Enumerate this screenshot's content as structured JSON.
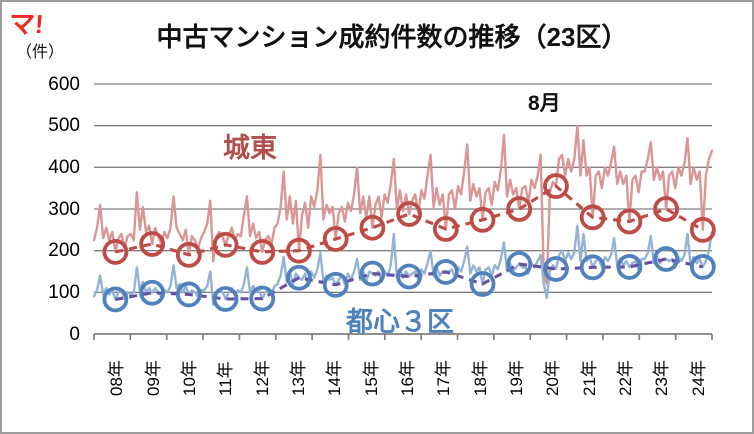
{
  "logo": {
    "text": "マ!"
  },
  "title": "中古マンション成約件数の推移（23区）",
  "annotation": {
    "august": "8月"
  },
  "axes": {
    "unit_label": "（件）"
  },
  "series_labels": {
    "johto": "城東",
    "toshin3ku": "都心３区"
  },
  "colors": {
    "johto_monthly": "#d99694",
    "toshin_monthly": "#95b3d7",
    "johto_august": "#bf4b47",
    "toshin_august_marker": "#4f81bd",
    "toshin_august_dash": "#6650a0",
    "gridline": "#7f7f7f",
    "title_text": "#111111",
    "logo_red": "#ee2a1e"
  },
  "chart_data": {
    "type": "line",
    "title": "中古マンション成約件数の推移（23区）",
    "x_unit": "month",
    "x_range": "2008-01 to 2024-11",
    "annotation": "8月",
    "grid": "horizontal",
    "legend_position": "none (inline labels)",
    "ylim": [
      0,
      600
    ],
    "yticks": [
      0,
      100,
      200,
      300,
      400,
      500,
      600
    ],
    "year_labels": [
      "08年",
      "09年",
      "10年",
      "11年",
      "12年",
      "13年",
      "14年",
      "15年",
      "16年",
      "17年",
      "18年",
      "19年",
      "20年",
      "21年",
      "22年",
      "23年",
      "24年"
    ],
    "series": [
      {
        "name": "城東 月次成約件数",
        "style": "solid",
        "color": "#d99694",
        "values": [
          225,
          255,
          310,
          230,
          255,
          225,
          245,
          197,
          230,
          240,
          205,
          235,
          240,
          225,
          340,
          250,
          305,
          245,
          260,
          216,
          255,
          235,
          215,
          245,
          230,
          255,
          330,
          255,
          240,
          225,
          250,
          190,
          235,
          225,
          205,
          230,
          245,
          265,
          320,
          175,
          235,
          245,
          235,
          214,
          235,
          255,
          225,
          240,
          235,
          285,
          330,
          235,
          265,
          230,
          245,
          197,
          225,
          235,
          215,
          255,
          265,
          305,
          390,
          275,
          330,
          265,
          320,
          200,
          285,
          315,
          255,
          330,
          305,
          345,
          430,
          275,
          310,
          290,
          305,
          228,
          290,
          305,
          270,
          315,
          295,
          335,
          400,
          290,
          330,
          280,
          330,
          255,
          310,
          330,
          280,
          335,
          315,
          360,
          420,
          300,
          345,
          295,
          335,
          288,
          320,
          335,
          290,
          345,
          325,
          380,
          430,
          305,
          350,
          310,
          335,
          252,
          335,
          345,
          300,
          355,
          335,
          390,
          455,
          320,
          360,
          330,
          350,
          274,
          340,
          350,
          310,
          365,
          345,
          395,
          478,
          330,
          370,
          335,
          350,
          300,
          350,
          355,
          315,
          370,
          350,
          380,
          430,
          145,
          120,
          340,
          365,
          355,
          420,
          430,
          380,
          420,
          390,
          420,
          500,
          380,
          465,
          380,
          400,
          280,
          380,
          390,
          350,
          400,
          380,
          410,
          450,
          360,
          390,
          360,
          380,
          270,
          370,
          380,
          340,
          390,
          390,
          420,
          460,
          370,
          400,
          370,
          390,
          300,
          380,
          390,
          350,
          400,
          380,
          410,
          470,
          360,
          400,
          370,
          390,
          250,
          380,
          420,
          440
        ]
      },
      {
        "name": "都心３区 月次成約件数",
        "style": "solid",
        "color": "#95b3d7",
        "values": [
          90,
          105,
          140,
          95,
          110,
          95,
          105,
          83,
          100,
          105,
          85,
          100,
          95,
          100,
          160,
          105,
          125,
          100,
          110,
          99,
          110,
          100,
          90,
          105,
          100,
          115,
          165,
          110,
          120,
          100,
          115,
          95,
          105,
          100,
          90,
          105,
          105,
          115,
          150,
          70,
          100,
          105,
          100,
          84,
          100,
          110,
          95,
          105,
          100,
          120,
          160,
          100,
          115,
          100,
          105,
          85,
          100,
          105,
          95,
          115,
          120,
          140,
          185,
          125,
          150,
          120,
          145,
          135,
          130,
          145,
          115,
          150,
          135,
          155,
          195,
          125,
          140,
          130,
          135,
          118,
          130,
          140,
          120,
          145,
          130,
          150,
          180,
          130,
          150,
          125,
          150,
          145,
          140,
          150,
          125,
          150,
          140,
          165,
          240,
          135,
          155,
          135,
          150,
          138,
          145,
          150,
          130,
          155,
          145,
          170,
          200,
          140,
          160,
          140,
          150,
          149,
          150,
          155,
          135,
          160,
          150,
          175,
          210,
          145,
          165,
          150,
          160,
          120,
          155,
          160,
          140,
          165,
          155,
          180,
          220,
          150,
          170,
          150,
          160,
          168,
          160,
          160,
          145,
          170,
          160,
          175,
          190,
          120,
          87,
          150,
          165,
          156,
          190,
          200,
          175,
          195,
          180,
          195,
          260,
          175,
          240,
          175,
          185,
          160,
          175,
          180,
          160,
          185,
          175,
          190,
          230,
          165,
          180,
          165,
          175,
          161,
          170,
          175,
          155,
          180,
          180,
          195,
          235,
          170,
          185,
          170,
          180,
          180,
          175,
          180,
          160,
          185,
          175,
          190,
          240,
          165,
          185,
          170,
          180,
          161,
          175,
          200,
          245
        ]
      },
      {
        "name": "城東 8月成約件数",
        "style": "dashed-line-circle-markers",
        "line_color": "#bf4b47",
        "marker_color": "#bf4b47",
        "august_years": [
          "2008",
          "2009",
          "2010",
          "2011",
          "2012",
          "2013",
          "2014",
          "2015",
          "2016",
          "2017",
          "2018",
          "2019",
          "2020",
          "2021",
          "2022",
          "2023",
          "2024"
        ],
        "values": [
          197,
          216,
          190,
          214,
          197,
          200,
          228,
          255,
          288,
          252,
          274,
          300,
          355,
          280,
          270,
          300,
          250
        ]
      },
      {
        "name": "都心３区 8月成約件数",
        "style": "dashed-line-circle-markers",
        "line_color": "#6650a0",
        "marker_color": "#4f81bd",
        "august_years": [
          "2008",
          "2009",
          "2010",
          "2011",
          "2012",
          "2013",
          "2014",
          "2015",
          "2016",
          "2017",
          "2018",
          "2019",
          "2020",
          "2021",
          "2022",
          "2023",
          "2024"
        ],
        "values": [
          83,
          99,
          95,
          84,
          85,
          135,
          118,
          145,
          138,
          149,
          120,
          168,
          156,
          160,
          161,
          180,
          161
        ]
      }
    ]
  }
}
